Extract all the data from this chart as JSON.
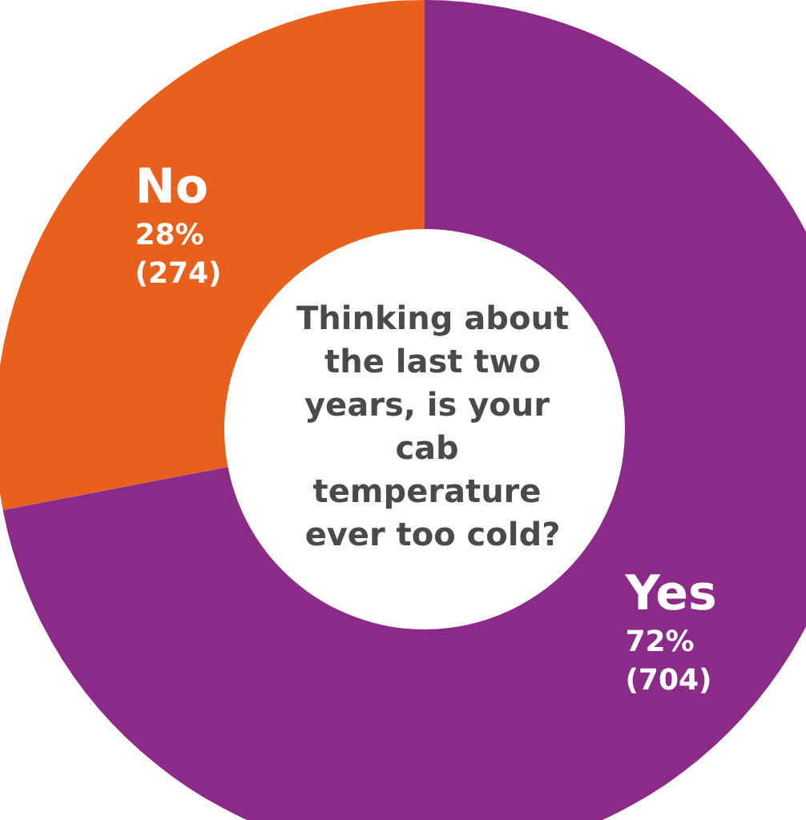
{
  "chart_data": {
    "type": "donut",
    "title": "Thinking about the last two years, is your cab temperature ever too cold?",
    "categories": [
      "No",
      "Yes"
    ],
    "values": [
      274,
      704
    ],
    "value_labels": [
      "28%\n(274)",
      "72%\n(704)"
    ],
    "colors": [
      "#e8601c",
      "#8b2b87"
    ],
    "legend": false
  }
}
